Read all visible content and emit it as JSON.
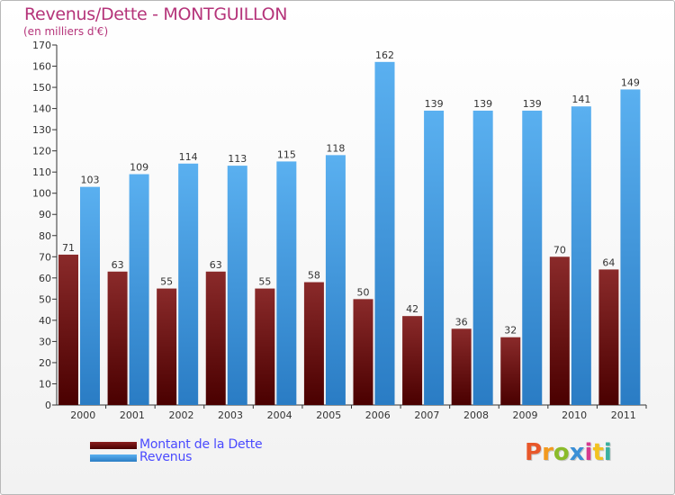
{
  "title": "Revenus/Dette - MONTGUILLON",
  "subtitle": "(en milliers d'€)",
  "logo": "Proxiti",
  "legend": [
    {
      "label": "Montant de la Dette",
      "color": "#6b0f12"
    },
    {
      "label": "Revenus",
      "color": "#3d98e2"
    }
  ],
  "colors": {
    "dette": "#7a1f1f",
    "revenus": "#4aa3e8",
    "axis": "#333333",
    "grid_tick": "#444444"
  },
  "chart_data": {
    "type": "bar",
    "title": "Revenus/Dette - MONTGUILLON",
    "subtitle": "(en milliers d'€)",
    "categories": [
      "2000",
      "2001",
      "2002",
      "2003",
      "2004",
      "2005",
      "2006",
      "2007",
      "2008",
      "2009",
      "2010",
      "2011"
    ],
    "series": [
      {
        "name": "Montant de la Dette",
        "values": [
          71,
          63,
          55,
          63,
          55,
          58,
          50,
          42,
          36,
          32,
          70,
          64
        ]
      },
      {
        "name": "Revenus",
        "values": [
          103,
          109,
          114,
          113,
          115,
          118,
          162,
          139,
          139,
          139,
          141,
          149
        ]
      }
    ],
    "ylim": [
      0,
      170
    ],
    "yticks": [
      0,
      10,
      20,
      30,
      40,
      50,
      60,
      70,
      80,
      90,
      100,
      110,
      120,
      130,
      140,
      150,
      160,
      170
    ],
    "grid": false,
    "legend_position": "bottom-left",
    "data_labels": true
  }
}
